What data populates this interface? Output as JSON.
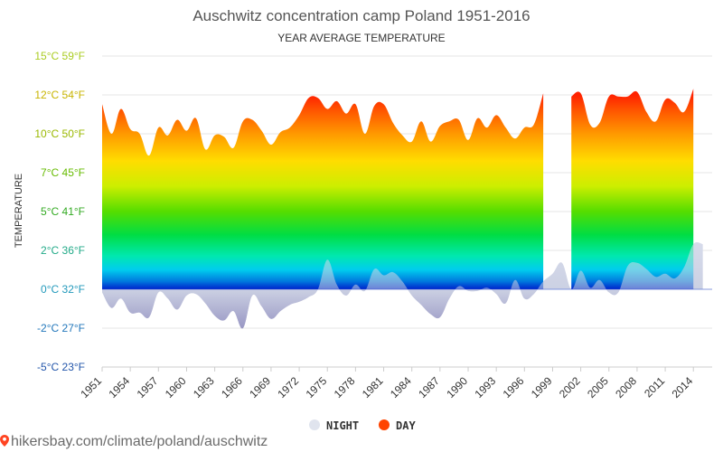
{
  "chart_data": {
    "type": "area",
    "title": "Auschwitz concentration camp Poland 1951-2016",
    "subtitle": "YEAR AVERAGE TEMPERATURE",
    "ylabel": "TEMPERATURE",
    "xlabel": "",
    "ylim": [
      -5,
      15
    ],
    "y_ticks": [
      {
        "value": 15,
        "label": "15°C 59°F",
        "color": "#aacc22"
      },
      {
        "value": 12.5,
        "label": "12°C 54°F",
        "color": "#c8b400"
      },
      {
        "value": 10,
        "label": "10°C 50°F",
        "color": "#9ab800"
      },
      {
        "value": 7.5,
        "label": "7°C 45°F",
        "color": "#66bb00"
      },
      {
        "value": 5,
        "label": "5°C 41°F",
        "color": "#33aa22"
      },
      {
        "value": 2.5,
        "label": "2°C 36°F",
        "color": "#22aa88"
      },
      {
        "value": 0,
        "label": "0°C 32°F",
        "color": "#2299bb"
      },
      {
        "value": -2.5,
        "label": "-2°C 27°F",
        "color": "#2277bb"
      },
      {
        "value": -5,
        "label": "-5°C 23°F",
        "color": "#2255aa"
      }
    ],
    "x_tick_labels": [
      "1951",
      "1954",
      "1957",
      "1960",
      "1963",
      "1966",
      "1969",
      "1972",
      "1975",
      "1978",
      "1981",
      "1984",
      "1987",
      "1990",
      "1993",
      "1996",
      "1999",
      "2002",
      "2005",
      "2008",
      "2011",
      "2014"
    ],
    "x": [
      1951,
      1952,
      1953,
      1954,
      1955,
      1956,
      1957,
      1958,
      1959,
      1960,
      1961,
      1962,
      1963,
      1964,
      1965,
      1966,
      1967,
      1968,
      1969,
      1970,
      1971,
      1972,
      1973,
      1974,
      1975,
      1976,
      1977,
      1978,
      1979,
      1980,
      1981,
      1982,
      1983,
      1984,
      1985,
      1986,
      1987,
      1988,
      1989,
      1990,
      1991,
      1992,
      1993,
      1994,
      1995,
      1996,
      1997,
      1998,
      1999,
      2000,
      2001,
      2002,
      2003,
      2004,
      2005,
      2006,
      2007,
      2008,
      2009,
      2010,
      2011,
      2012,
      2013,
      2014,
      2015,
      2016
    ],
    "series": [
      {
        "name": "DAY",
        "color": "#ff4400",
        "values": [
          11.9,
          10.0,
          11.6,
          10.3,
          10.0,
          8.6,
          10.4,
          9.9,
          10.9,
          10.2,
          11.0,
          9.0,
          9.9,
          9.8,
          9.1,
          10.8,
          10.9,
          10.2,
          9.3,
          10.1,
          10.4,
          11.2,
          12.3,
          12.3,
          11.6,
          12.1,
          11.3,
          11.9,
          10.0,
          11.8,
          11.9,
          10.7,
          9.9,
          9.5,
          10.8,
          9.5,
          10.5,
          10.8,
          10.9,
          9.6,
          11.0,
          10.4,
          11.2,
          10.4,
          9.7,
          10.4,
          10.6,
          12.6,
          null,
          null,
          12.4,
          12.6,
          10.6,
          10.7,
          12.4,
          12.4,
          12.4,
          12.7,
          11.4,
          10.8,
          12.2,
          12.0,
          11.4,
          12.9,
          null,
          null
        ]
      },
      {
        "name": "NIGHT",
        "color": "#e0e4ee",
        "values": [
          -0.2,
          -1.2,
          -0.6,
          -1.5,
          -1.5,
          -1.8,
          -0.2,
          -0.6,
          -1.3,
          -0.4,
          -0.3,
          -0.9,
          -1.7,
          -2.0,
          -1.4,
          -2.5,
          -0.4,
          -1.1,
          -1.9,
          -1.4,
          -1.0,
          -0.8,
          -0.5,
          0.0,
          1.9,
          0.3,
          -0.4,
          0.3,
          -0.1,
          1.3,
          0.9,
          1.1,
          0.5,
          -0.4,
          -1.0,
          -1.6,
          -1.8,
          -0.6,
          0.2,
          -0.1,
          -0.1,
          0.1,
          -0.3,
          -0.9,
          0.6,
          -0.6,
          -0.3,
          0.5,
          1.0,
          1.7,
          0.0,
          1.2,
          0.1,
          0.6,
          -0.2,
          -0.2,
          1.5,
          1.7,
          1.3,
          0.8,
          1.0,
          0.7,
          1.4,
          2.9,
          2.9,
          null
        ]
      }
    ],
    "legend": [
      {
        "name": "NIGHT",
        "color": "#e0e4ee"
      },
      {
        "name": "DAY",
        "color": "#ff4400"
      }
    ],
    "legend_position": "bottom",
    "grid": true
  },
  "footer": {
    "url": "hikersbay.com/climate/poland/auschwitz",
    "pin_icon": "map-pin-icon",
    "pin_color": "#ff4422"
  }
}
